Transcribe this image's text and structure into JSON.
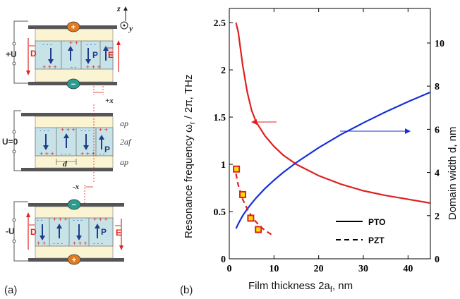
{
  "panel_a": {
    "label": "(a)",
    "top": {
      "voltage": "+U",
      "axis_z": "z",
      "axis_y": "y",
      "electrode_sign": "+",
      "lower_electrode_sign": "−",
      "field_D": "D",
      "field_E": "E",
      "pol": "P",
      "shift": "+x"
    },
    "middle": {
      "voltage": "U=0",
      "layer_top": "ap",
      "layer_mid": "2af",
      "layer_bot": "ap",
      "domain_width": "d",
      "pol": "P"
    },
    "bottom": {
      "voltage": "-U",
      "upper_electrode_sign": "−",
      "electrode_sign": "+",
      "field_D": "D",
      "field_E": "E",
      "pol": "P",
      "shift": "-x"
    },
    "colors": {
      "electrode_plus": "#e07b22",
      "electrode_minus": "#2a9d8f",
      "film_fill": "#fbf4d3",
      "domain_fill": "#c7e3e8",
      "arrow": "#1f3d8a",
      "charge_red": "#e0241b",
      "charge_blue": "#2a6fd6"
    }
  },
  "panel_b_label": "(b)",
  "chart_data": {
    "type": "line",
    "xlabel": "Film thickness 2a",
    "xlabel_sub": "f",
    "xlabel_unit": ", nm",
    "ylabel_left": "Resonance frequency  ω",
    "ylabel_left_sub": "r",
    "ylabel_left_tail": " / 2π, THz",
    "ylabel_right": "Domain width d, nm",
    "xlim": [
      0,
      45
    ],
    "ylim_left": [
      0,
      2.65
    ],
    "ylim_right": [
      0,
      11.6
    ],
    "xticks": [
      "0",
      "10",
      "20",
      "30",
      "40"
    ],
    "yticks_left": [
      "0",
      "0.5",
      "1",
      "1.5",
      "2",
      "2.5"
    ],
    "yticks_right": [
      "0",
      "2",
      "4",
      "6",
      "8",
      "10"
    ],
    "legend": [
      {
        "label": "PTO",
        "style": "solid"
      },
      {
        "label": "PZT",
        "style": "dashed"
      }
    ],
    "legend_position": "bottom-right",
    "series": [
      {
        "name": "PTO",
        "axis": "left",
        "color": "#e02020",
        "style": "solid",
        "x": [
          1.5,
          2,
          3,
          4,
          5,
          6,
          8,
          10,
          12,
          15,
          20,
          25,
          30,
          35,
          40,
          45
        ],
        "y": [
          2.5,
          2.4,
          2.05,
          1.77,
          1.57,
          1.45,
          1.3,
          1.19,
          1.1,
          1.0,
          0.88,
          0.79,
          0.72,
          0.67,
          0.63,
          0.59
        ]
      },
      {
        "name": "PTO",
        "axis": "right",
        "color": "#1530d8",
        "style": "solid",
        "x": [
          1.5,
          2,
          3,
          4,
          5,
          6,
          8,
          10,
          12,
          15,
          20,
          25,
          30,
          35,
          40,
          45
        ],
        "y": [
          1.4,
          1.62,
          2.0,
          2.3,
          2.57,
          2.82,
          3.26,
          3.64,
          3.99,
          4.46,
          5.15,
          5.76,
          6.3,
          6.81,
          7.28,
          7.72
        ]
      },
      {
        "name": "PZT",
        "axis": "left",
        "color": "#e02020",
        "style": "dashed",
        "x": [
          1.5,
          2,
          3,
          4,
          5,
          6,
          7,
          8,
          10
        ],
        "y": [
          0.9,
          0.78,
          0.63,
          0.53,
          0.45,
          0.39,
          0.34,
          0.3,
          0.24
        ]
      }
    ],
    "markers": {
      "axis": "left",
      "color": "#e02020",
      "fill": "#ffe000",
      "x": [
        1.6,
        3.0,
        4.8,
        6.5
      ],
      "y": [
        0.95,
        0.68,
        0.43,
        0.31
      ]
    },
    "annotations": [
      {
        "text": "←",
        "target": "left",
        "color": "#e02020"
      },
      {
        "text": "→",
        "target": "right",
        "color": "#1530d8"
      }
    ]
  }
}
